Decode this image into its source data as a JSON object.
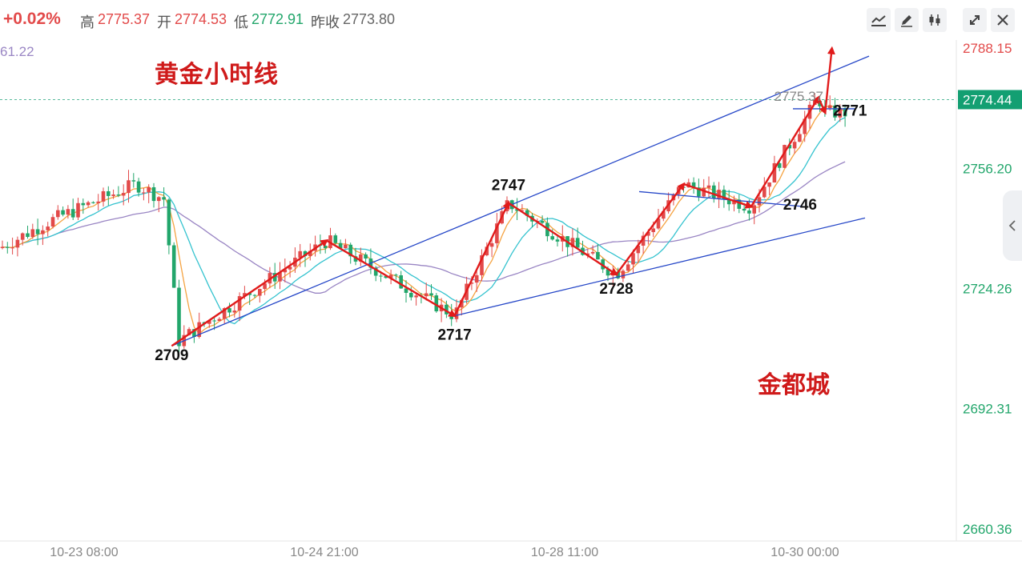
{
  "header": {
    "change": "+0.02%",
    "high_label": "高",
    "high": "2775.37",
    "open_label": "开",
    "open": "2774.53",
    "low_label": "低",
    "low": "2772.91",
    "prev_label": "昨收",
    "prev": "2773.80"
  },
  "indicator_value": "61.22",
  "toolbar": {
    "buttons": [
      {
        "name": "indicator-button",
        "icon": "line-chart-icon"
      },
      {
        "name": "draw-button",
        "icon": "pencil-icon"
      },
      {
        "name": "candle-style-button",
        "icon": "candlestick-icon"
      },
      {
        "name": "fullscreen-button",
        "icon": "expand-icon"
      },
      {
        "name": "close-button",
        "icon": "close-icon"
      }
    ]
  },
  "annotations": {
    "title": "黄金小时线",
    "watermark": "金都城",
    "price_labels": [
      "2709",
      "2717",
      "2728",
      "2747",
      "2746",
      "2771"
    ],
    "high_marker": "2775.37"
  },
  "colors": {
    "up": "#e24a4a",
    "down": "#22a66b",
    "ma_fast": "#f5a342",
    "ma_mid": "#35c3cf",
    "ma_slow": "#9a86c4",
    "arrow": "#e11b1b",
    "trendline": "#2748c8",
    "current_price": "#139f72"
  },
  "chart_data": {
    "type": "candlestick",
    "title": "黄金小时线",
    "x_ticks": [
      "10-23 08:00",
      "10-24 21:00",
      "10-28 11:00",
      "10-30 00:00"
    ],
    "y_ticks": [
      2788.15,
      2756.2,
      2724.26,
      2692.31,
      2660.36
    ],
    "ylim": [
      2660.36,
      2794.3
    ],
    "current_price": 2774.44,
    "session_high": 2775.37,
    "swing_points": [
      {
        "time": "10-23 21:00",
        "price": 2709
      },
      {
        "time": "10-24 21:00",
        "price": 2737
      },
      {
        "time": "10-25 17:00",
        "price": 2717
      },
      {
        "time": "10-28 02:00",
        "price": 2747
      },
      {
        "time": "10-28 18:00",
        "price": 2728
      },
      {
        "time": "10-29 05:00",
        "price": 2752
      },
      {
        "time": "10-29 15:00",
        "price": 2746
      },
      {
        "time": "10-30 02:00",
        "price": 2775
      },
      {
        "time": "10-30 03:00",
        "price": 2771
      },
      {
        "time": "10-30 04:00",
        "price": 2788
      }
    ],
    "trend_channel": {
      "upper": [
        {
          "time": "10-23 21:00",
          "price": 2709
        },
        {
          "time": "10-30 04:00",
          "price": 2786
        }
      ],
      "lower": [
        {
          "time": "10-25 17:00",
          "price": 2717
        },
        {
          "time": "10-30 04:00",
          "price": 2743
        }
      ]
    },
    "support_lines": [
      {
        "price": 2746,
        "label": "2746"
      },
      {
        "price": 2771,
        "label": "2771"
      }
    ]
  }
}
